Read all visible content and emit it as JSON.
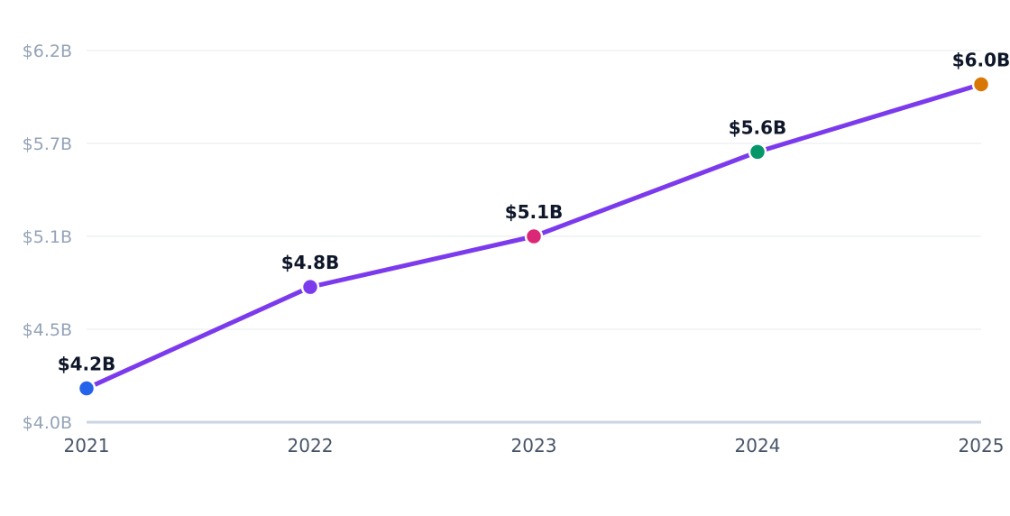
{
  "chart_data": {
    "type": "line",
    "title": "",
    "xlabel": "",
    "ylabel": "",
    "categories": [
      "2021",
      "2022",
      "2023",
      "2024",
      "2025"
    ],
    "ylim": [
      4.0,
      6.2
    ],
    "y_ticks": [
      {
        "value": 4.0,
        "label": "$4.0B"
      },
      {
        "value": 4.55,
        "label": "$4.5B"
      },
      {
        "value": 5.1,
        "label": "$5.1B"
      },
      {
        "value": 5.65,
        "label": "$5.7B"
      },
      {
        "value": 6.2,
        "label": "$6.2B"
      }
    ],
    "grid": true,
    "legend": "none",
    "line_color": "#7c3aed",
    "series": [
      {
        "values": [
          4.2,
          4.8,
          5.1,
          5.6,
          6.0
        ],
        "labels": [
          "$4.2B",
          "$4.8B",
          "$5.1B",
          "$5.6B",
          "$6.0B"
        ],
        "point_colors": [
          "#2563eb",
          "#7c3aed",
          "#db2777",
          "#059669",
          "#d97706"
        ]
      }
    ]
  }
}
